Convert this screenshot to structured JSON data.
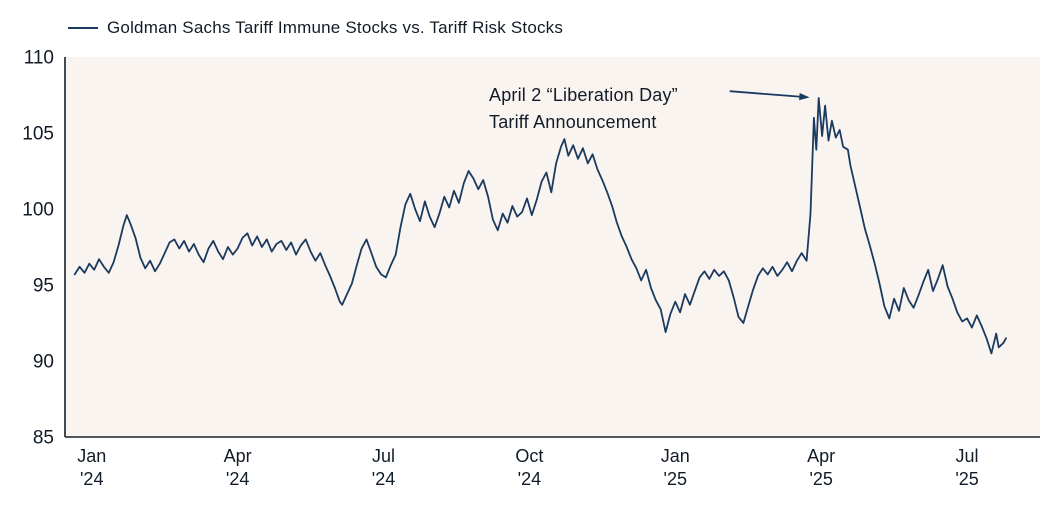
{
  "chart_data": {
    "type": "line",
    "title": "Goldman Sachs Tariff Immune Stocks vs. Tariff Risk Stocks",
    "legend_label": "Goldman Sachs Tariff Immune Stocks vs. Tariff Risk Stocks",
    "xlabel": "",
    "ylabel": "",
    "ylim": [
      85,
      110
    ],
    "yticks": [
      85,
      90,
      95,
      100,
      105,
      110
    ],
    "xlim_months": [
      -0.55,
      19.5
    ],
    "grid": false,
    "legend_position": "top-left",
    "colors": {
      "line": "#1b3a5f",
      "plot_background": "#faf4f0",
      "axis": "#16202c",
      "text": "#121c28",
      "annotation_arrow": "#1b3a5f"
    },
    "xticks": [
      {
        "month": 0,
        "line1": "Jan",
        "line2": "'24"
      },
      {
        "month": 3,
        "line1": "Apr",
        "line2": "'24"
      },
      {
        "month": 6,
        "line1": "Jul",
        "line2": "'24"
      },
      {
        "month": 9,
        "line1": "Oct",
        "line2": "'24"
      },
      {
        "month": 12,
        "line1": "Jan",
        "line2": "'25"
      },
      {
        "month": 15,
        "line1": "Apr",
        "line2": "'25"
      },
      {
        "month": 18,
        "line1": "Jul",
        "line2": "'25"
      }
    ],
    "annotation": {
      "line1": "April 2 “Liberation Day”",
      "line2": "Tariff Announcement",
      "arrow": {
        "from": [
          13.12,
          107.75
        ],
        "to": [
          14.72,
          107.35
        ]
      }
    },
    "series": [
      {
        "name": "Goldman Sachs Tariff Immune Stocks vs. Tariff Risk Stocks",
        "points": [
          [
            -0.35,
            95.7
          ],
          [
            -0.25,
            96.2
          ],
          [
            -0.15,
            95.8
          ],
          [
            -0.05,
            96.4
          ],
          [
            0.05,
            96.0
          ],
          [
            0.15,
            96.7
          ],
          [
            0.25,
            96.2
          ],
          [
            0.35,
            95.8
          ],
          [
            0.45,
            96.5
          ],
          [
            0.55,
            97.6
          ],
          [
            0.65,
            98.9
          ],
          [
            0.72,
            99.6
          ],
          [
            0.8,
            99.0
          ],
          [
            0.9,
            98.1
          ],
          [
            1.0,
            96.8
          ],
          [
            1.1,
            96.1
          ],
          [
            1.2,
            96.6
          ],
          [
            1.3,
            95.9
          ],
          [
            1.4,
            96.4
          ],
          [
            1.5,
            97.1
          ],
          [
            1.6,
            97.8
          ],
          [
            1.7,
            98.0
          ],
          [
            1.8,
            97.4
          ],
          [
            1.9,
            97.9
          ],
          [
            2.0,
            97.2
          ],
          [
            2.1,
            97.7
          ],
          [
            2.2,
            97.0
          ],
          [
            2.3,
            96.5
          ],
          [
            2.4,
            97.4
          ],
          [
            2.5,
            97.9
          ],
          [
            2.6,
            97.2
          ],
          [
            2.7,
            96.7
          ],
          [
            2.8,
            97.5
          ],
          [
            2.9,
            97.0
          ],
          [
            3.0,
            97.4
          ],
          [
            3.1,
            98.1
          ],
          [
            3.2,
            98.4
          ],
          [
            3.3,
            97.6
          ],
          [
            3.4,
            98.2
          ],
          [
            3.5,
            97.5
          ],
          [
            3.6,
            98.0
          ],
          [
            3.7,
            97.2
          ],
          [
            3.8,
            97.7
          ],
          [
            3.9,
            97.9
          ],
          [
            4.0,
            97.3
          ],
          [
            4.1,
            97.8
          ],
          [
            4.2,
            97.0
          ],
          [
            4.3,
            97.6
          ],
          [
            4.4,
            98.0
          ],
          [
            4.5,
            97.2
          ],
          [
            4.6,
            96.6
          ],
          [
            4.7,
            97.1
          ],
          [
            4.8,
            96.3
          ],
          [
            4.9,
            95.6
          ],
          [
            5.0,
            94.8
          ],
          [
            5.1,
            93.9
          ],
          [
            5.15,
            93.7
          ],
          [
            5.25,
            94.4
          ],
          [
            5.35,
            95.1
          ],
          [
            5.45,
            96.3
          ],
          [
            5.55,
            97.4
          ],
          [
            5.65,
            98.0
          ],
          [
            5.75,
            97.1
          ],
          [
            5.85,
            96.2
          ],
          [
            5.95,
            95.7
          ],
          [
            6.05,
            95.5
          ],
          [
            6.15,
            96.3
          ],
          [
            6.25,
            97.0
          ],
          [
            6.35,
            98.8
          ],
          [
            6.45,
            100.3
          ],
          [
            6.55,
            101.0
          ],
          [
            6.65,
            100.0
          ],
          [
            6.75,
            99.2
          ],
          [
            6.85,
            100.5
          ],
          [
            6.95,
            99.5
          ],
          [
            7.05,
            98.8
          ],
          [
            7.15,
            99.7
          ],
          [
            7.25,
            100.8
          ],
          [
            7.35,
            100.1
          ],
          [
            7.45,
            101.2
          ],
          [
            7.55,
            100.4
          ],
          [
            7.65,
            101.7
          ],
          [
            7.75,
            102.5
          ],
          [
            7.85,
            102.0
          ],
          [
            7.95,
            101.3
          ],
          [
            8.05,
            101.9
          ],
          [
            8.15,
            100.8
          ],
          [
            8.25,
            99.3
          ],
          [
            8.35,
            98.6
          ],
          [
            8.45,
            99.7
          ],
          [
            8.55,
            99.1
          ],
          [
            8.65,
            100.2
          ],
          [
            8.75,
            99.5
          ],
          [
            8.85,
            99.8
          ],
          [
            8.95,
            100.7
          ],
          [
            9.05,
            99.6
          ],
          [
            9.15,
            100.6
          ],
          [
            9.25,
            101.8
          ],
          [
            9.35,
            102.4
          ],
          [
            9.45,
            101.1
          ],
          [
            9.55,
            103.0
          ],
          [
            9.65,
            104.1
          ],
          [
            9.72,
            104.6
          ],
          [
            9.8,
            103.5
          ],
          [
            9.9,
            104.2
          ],
          [
            10.0,
            103.3
          ],
          [
            10.1,
            104.0
          ],
          [
            10.2,
            103.0
          ],
          [
            10.3,
            103.6
          ],
          [
            10.4,
            102.6
          ],
          [
            10.5,
            101.9
          ],
          [
            10.6,
            101.1
          ],
          [
            10.7,
            100.2
          ],
          [
            10.8,
            99.1
          ],
          [
            10.9,
            98.2
          ],
          [
            11.0,
            97.5
          ],
          [
            11.1,
            96.7
          ],
          [
            11.2,
            96.1
          ],
          [
            11.3,
            95.3
          ],
          [
            11.4,
            96.0
          ],
          [
            11.5,
            94.8
          ],
          [
            11.6,
            94.0
          ],
          [
            11.7,
            93.4
          ],
          [
            11.8,
            91.9
          ],
          [
            11.9,
            93.1
          ],
          [
            12.0,
            93.9
          ],
          [
            12.1,
            93.2
          ],
          [
            12.2,
            94.4
          ],
          [
            12.3,
            93.7
          ],
          [
            12.4,
            94.6
          ],
          [
            12.5,
            95.5
          ],
          [
            12.6,
            95.9
          ],
          [
            12.7,
            95.4
          ],
          [
            12.8,
            96.0
          ],
          [
            12.9,
            95.6
          ],
          [
            13.0,
            95.9
          ],
          [
            13.1,
            95.3
          ],
          [
            13.2,
            94.2
          ],
          [
            13.3,
            92.9
          ],
          [
            13.4,
            92.5
          ],
          [
            13.5,
            93.6
          ],
          [
            13.6,
            94.7
          ],
          [
            13.7,
            95.6
          ],
          [
            13.8,
            96.1
          ],
          [
            13.9,
            95.7
          ],
          [
            14.0,
            96.2
          ],
          [
            14.1,
            95.6
          ],
          [
            14.2,
            96.0
          ],
          [
            14.3,
            96.5
          ],
          [
            14.4,
            95.9
          ],
          [
            14.5,
            96.6
          ],
          [
            14.6,
            97.1
          ],
          [
            14.7,
            96.6
          ],
          [
            14.78,
            99.7
          ],
          [
            14.85,
            106.0
          ],
          [
            14.9,
            103.9
          ],
          [
            14.95,
            107.3
          ],
          [
            15.02,
            104.8
          ],
          [
            15.08,
            106.8
          ],
          [
            15.15,
            104.5
          ],
          [
            15.22,
            105.8
          ],
          [
            15.3,
            104.7
          ],
          [
            15.38,
            105.2
          ],
          [
            15.45,
            104.1
          ],
          [
            15.55,
            103.9
          ],
          [
            15.6,
            102.9
          ],
          [
            15.7,
            101.5
          ],
          [
            15.8,
            100.1
          ],
          [
            15.9,
            98.7
          ],
          [
            16.0,
            97.6
          ],
          [
            16.1,
            96.4
          ],
          [
            16.2,
            95.1
          ],
          [
            16.3,
            93.6
          ],
          [
            16.4,
            92.8
          ],
          [
            16.5,
            94.1
          ],
          [
            16.6,
            93.3
          ],
          [
            16.7,
            94.8
          ],
          [
            16.8,
            94.0
          ],
          [
            16.9,
            93.5
          ],
          [
            17.0,
            94.3
          ],
          [
            17.1,
            95.2
          ],
          [
            17.2,
            96.0
          ],
          [
            17.3,
            94.6
          ],
          [
            17.4,
            95.4
          ],
          [
            17.5,
            96.3
          ],
          [
            17.6,
            94.9
          ],
          [
            17.7,
            94.1
          ],
          [
            17.8,
            93.2
          ],
          [
            17.9,
            92.6
          ],
          [
            18.0,
            92.8
          ],
          [
            18.1,
            92.2
          ],
          [
            18.2,
            93.0
          ],
          [
            18.3,
            92.3
          ],
          [
            18.4,
            91.5
          ],
          [
            18.5,
            90.5
          ],
          [
            18.6,
            91.8
          ],
          [
            18.65,
            90.9
          ],
          [
            18.75,
            91.2
          ],
          [
            18.8,
            91.5
          ]
        ]
      }
    ]
  }
}
